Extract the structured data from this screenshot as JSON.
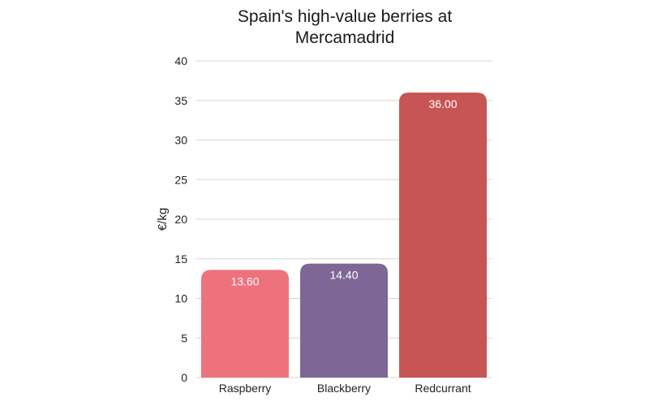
{
  "chart_data": {
    "type": "bar",
    "title_line1": "Spain's high-value berries at",
    "title_line2": "Mercamadrid",
    "ylabel": "€/kg",
    "ylim": [
      0,
      40
    ],
    "yticks": [
      "0",
      "5",
      "10",
      "15",
      "20",
      "25",
      "30",
      "35",
      "40"
    ],
    "grid": true,
    "categories": [
      "Raspberry",
      "Blackberry",
      "Redcurrant"
    ],
    "values": [
      13.6,
      14.4,
      36.0
    ],
    "data_labels": [
      "13.60",
      "14.40",
      "36.00"
    ],
    "colors": [
      "#ee727c",
      "#7e6697",
      "#c85555"
    ]
  }
}
